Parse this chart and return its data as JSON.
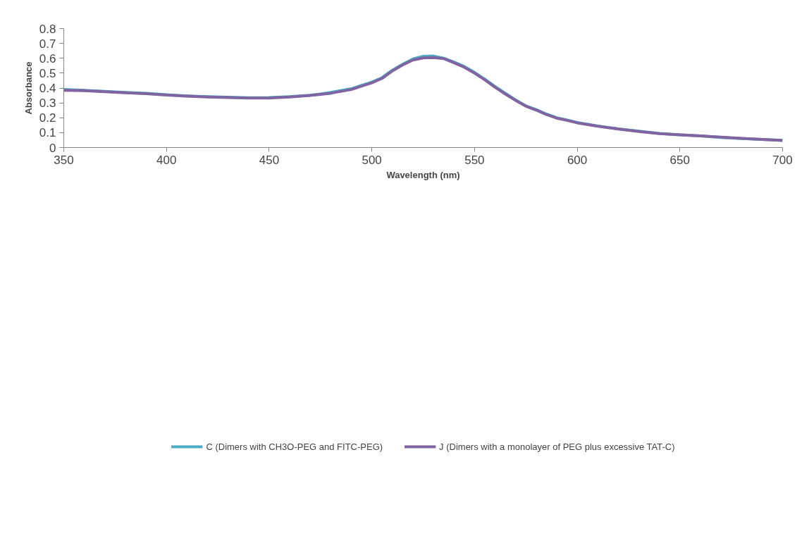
{
  "chart_data": {
    "type": "line",
    "xlabel": "Wavelength (nm)",
    "ylabel": "Absorbance",
    "x": [
      350,
      360,
      370,
      380,
      390,
      400,
      410,
      420,
      430,
      440,
      450,
      460,
      470,
      475,
      480,
      490,
      500,
      505,
      510,
      515,
      520,
      525,
      530,
      535,
      540,
      545,
      550,
      555,
      560,
      565,
      570,
      575,
      580,
      585,
      590,
      595,
      600,
      610,
      620,
      630,
      640,
      650,
      660,
      670,
      680,
      690,
      700
    ],
    "series": [
      {
        "name": "C (Dimers with CH3O-PEG and FITC-PEG)",
        "color": "#4bacc6",
        "values": [
          0.39,
          0.385,
          0.378,
          0.37,
          0.365,
          0.355,
          0.347,
          0.342,
          0.338,
          0.335,
          0.336,
          0.342,
          0.352,
          0.36,
          0.37,
          0.395,
          0.44,
          0.47,
          0.52,
          0.56,
          0.595,
          0.613,
          0.615,
          0.6,
          0.575,
          0.545,
          0.505,
          0.46,
          0.41,
          0.365,
          0.32,
          0.28,
          0.255,
          0.225,
          0.2,
          0.185,
          0.168,
          0.145,
          0.125,
          0.11,
          0.095,
          0.085,
          0.078,
          0.068,
          0.06,
          0.055,
          0.048
        ]
      },
      {
        "name": "J (Dimers with a monolayer of PEG plus excessive TAT-C)",
        "color": "#8064a2",
        "values": [
          0.385,
          0.382,
          0.375,
          0.368,
          0.362,
          0.353,
          0.345,
          0.34,
          0.336,
          0.333,
          0.333,
          0.34,
          0.35,
          0.357,
          0.365,
          0.39,
          0.435,
          0.465,
          0.515,
          0.555,
          0.588,
          0.602,
          0.605,
          0.598,
          0.57,
          0.54,
          0.5,
          0.455,
          0.405,
          0.36,
          0.317,
          0.278,
          0.252,
          0.222,
          0.198,
          0.183,
          0.166,
          0.143,
          0.124,
          0.108,
          0.094,
          0.085,
          0.078,
          0.07,
          0.061,
          0.055,
          0.047
        ]
      }
    ],
    "xlim": [
      350,
      700
    ],
    "xticks": [
      350,
      400,
      450,
      500,
      550,
      600,
      650,
      700
    ],
    "ylim": [
      0,
      0.8
    ],
    "yticks": [
      0,
      0.1,
      0.2,
      0.3,
      0.4,
      0.5,
      0.6,
      0.7,
      0.8
    ],
    "grid": false,
    "legend": "bottom",
    "line_style": "solid",
    "marker": "none"
  }
}
